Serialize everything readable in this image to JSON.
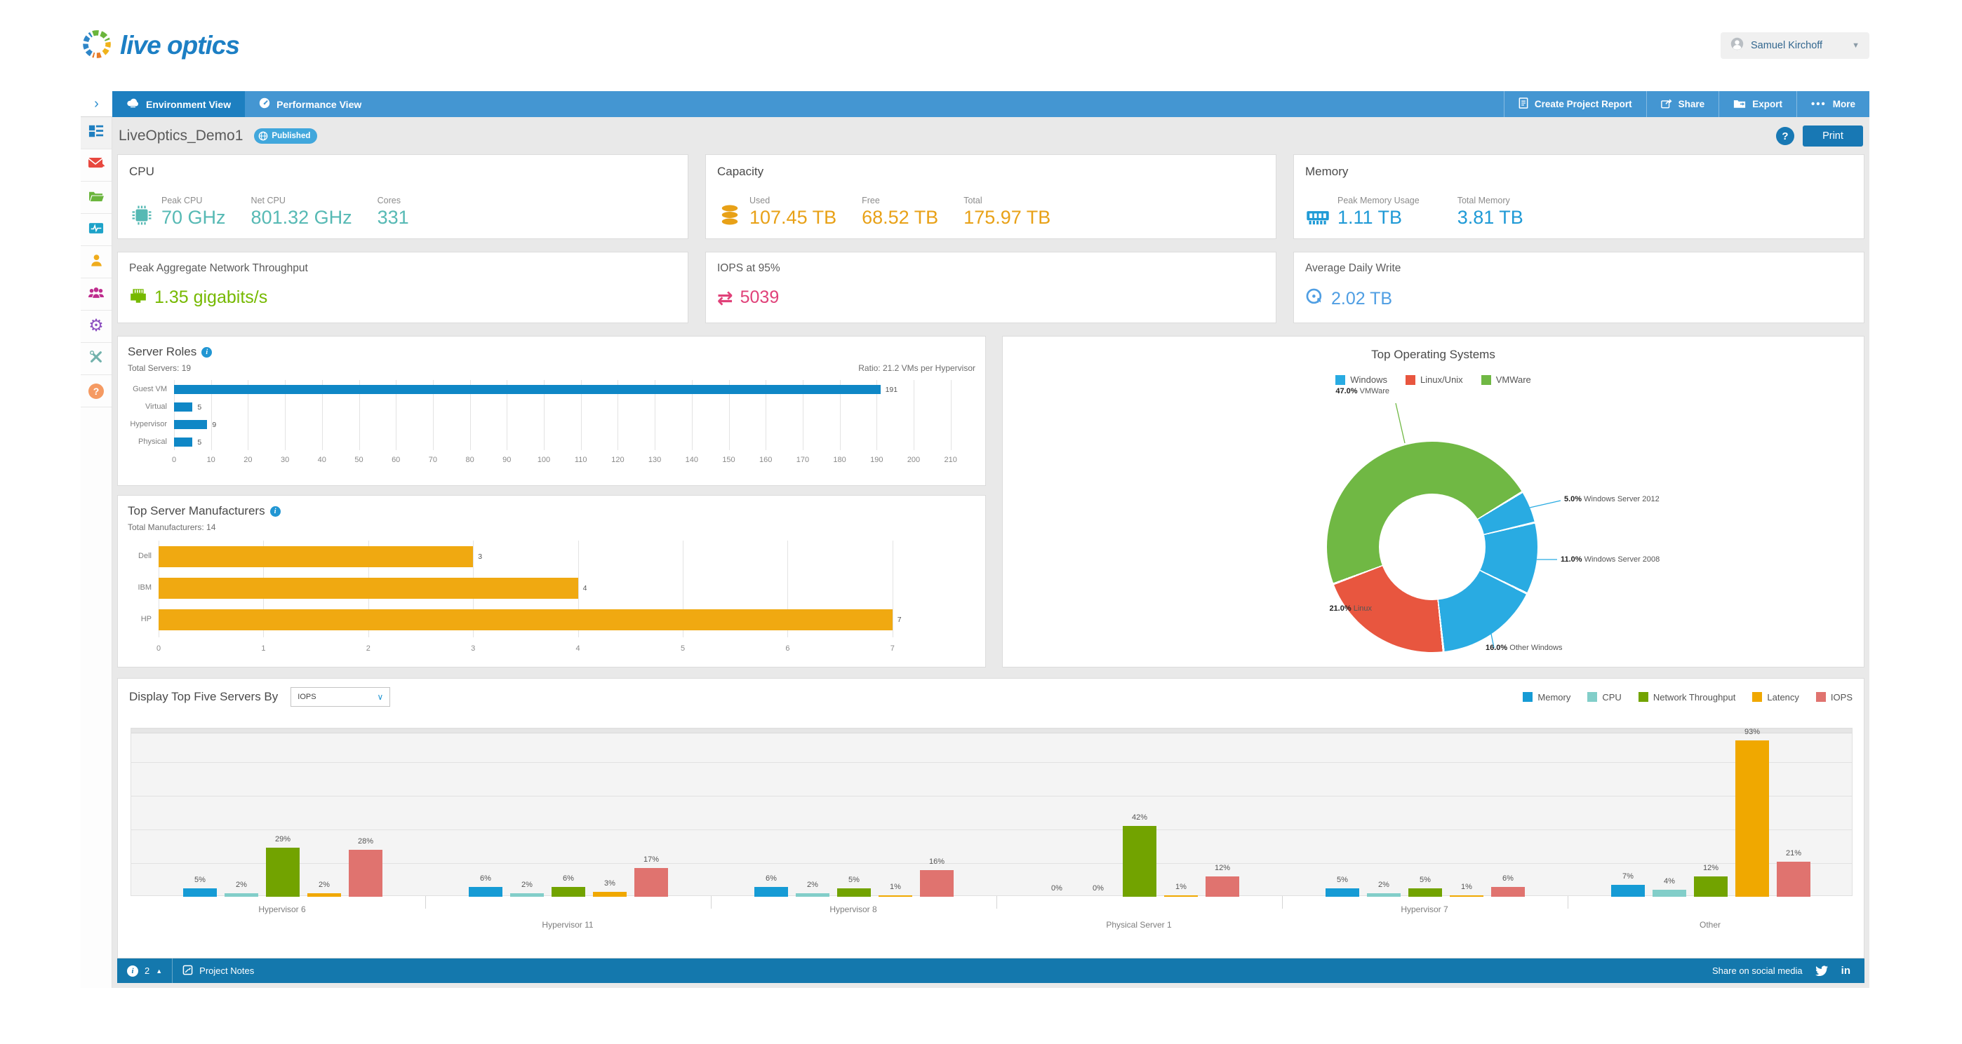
{
  "header": {
    "logo_text": "live optics",
    "user_name": "Samuel Kirchoff"
  },
  "navbar": {
    "collapse_icon": "›",
    "tabs": [
      {
        "label": "Environment View"
      },
      {
        "label": "Performance View"
      }
    ],
    "actions": [
      {
        "label": "Create Project Report"
      },
      {
        "label": "Share"
      },
      {
        "label": "Export"
      },
      {
        "label": "More"
      }
    ]
  },
  "titlebar": {
    "project_name": "LiveOptics_Demo1",
    "badge": "Published",
    "help_label": "?",
    "print_label": "Print"
  },
  "sidebar": {
    "items": [
      {
        "name": "dashboard-icon",
        "color": "#1f7fc0"
      },
      {
        "name": "mail-icon",
        "color": "#e8483f"
      },
      {
        "name": "folder-icon",
        "color": "#6ab53c"
      },
      {
        "name": "activity-monitor-icon",
        "color": "#1ea3c9"
      },
      {
        "name": "user-icon",
        "color": "#efac1c"
      },
      {
        "name": "team-icon",
        "color": "#bf2d8e"
      },
      {
        "name": "gear-icon",
        "color": "#8c4fc0"
      },
      {
        "name": "tools-icon",
        "color": "#72b2ac"
      },
      {
        "name": "help-icon",
        "color": "#f59a62"
      }
    ]
  },
  "summary_cards": {
    "cpu": {
      "title": "CPU",
      "accent": "#56b9b4",
      "metrics": [
        {
          "label": "Peak CPU",
          "value": "70 GHz"
        },
        {
          "label": "Net CPU",
          "value": "801.32 GHz"
        },
        {
          "label": "Cores",
          "value": "331"
        }
      ]
    },
    "capacity": {
      "title": "Capacity",
      "accent": "#e8a117",
      "metrics": [
        {
          "label": "Used",
          "value": "107.45 TB"
        },
        {
          "label": "Free",
          "value": "68.52 TB"
        },
        {
          "label": "Total",
          "value": "175.97 TB"
        }
      ]
    },
    "memory": {
      "title": "Memory",
      "accent": "#1f9ad6",
      "metrics": [
        {
          "label": "Peak Memory Usage",
          "value": "1.11 TB"
        },
        {
          "label": "Total Memory",
          "value": "3.81 TB"
        }
      ]
    },
    "network": {
      "title": "Peak Aggregate Network Throughput",
      "accent": "#76b900",
      "value": "1.35 gigabits/s"
    },
    "iops": {
      "title": "IOPS at 95%",
      "accent": "#e04179",
      "value": "5039"
    },
    "daily_write": {
      "title": "Average Daily Write",
      "accent": "#4f9ee3",
      "value": "2.02 TB"
    }
  },
  "chart_data": {
    "server_roles": {
      "type": "bar",
      "orientation": "horizontal",
      "title": "Server Roles",
      "subtitle_left": "Total Servers: 19",
      "subtitle_right": "Ratio: 21.2 VMs per Hypervisor",
      "categories": [
        "Guest VM",
        "Virtual",
        "Hypervisor",
        "Physical"
      ],
      "values": [
        191,
        5,
        9,
        5
      ],
      "xlim": [
        0,
        210
      ],
      "tick_step": 10,
      "bar_color": "#0f87c6",
      "grid": true
    },
    "manufacturers": {
      "type": "bar",
      "orientation": "horizontal",
      "title": "Top Server Manufacturers",
      "subtitle_left": "Total Manufacturers: 14",
      "categories": [
        "Dell",
        "IBM",
        "HP"
      ],
      "values": [
        3,
        4,
        7
      ],
      "xlim": [
        0,
        7
      ],
      "tick_step": 1,
      "bar_color": "#f0a911",
      "grid": true
    },
    "top_os": {
      "type": "pie",
      "donut": true,
      "start_angle_deg": 250,
      "title": "Top Operating Systems",
      "legend": [
        {
          "label": "Windows",
          "color": "#29abe2"
        },
        {
          "label": "Linux/Unix",
          "color": "#e8563f"
        },
        {
          "label": "VMWare",
          "color": "#70b844"
        }
      ],
      "slices": [
        {
          "label": "VMWare",
          "pct": 47.0,
          "color": "#70b844"
        },
        {
          "label": "Windows Server 2012",
          "pct": 5.0,
          "color": "#29abe2"
        },
        {
          "label": "Windows Server 2008",
          "pct": 11.0,
          "color": "#29abe2"
        },
        {
          "label": "Other Windows",
          "pct": 16.0,
          "color": "#29abe2"
        },
        {
          "label": "Linux",
          "pct": 21.0,
          "color": "#e8563f"
        }
      ]
    },
    "top_servers": {
      "type": "bar",
      "orientation": "vertical",
      "grouped": true,
      "title": "Display Top Five Servers By",
      "selected_metric": "IOPS",
      "categories": [
        "Hypervisor 6",
        "Hypervisor 11",
        "Hypervisor 8",
        "Physical Server 1",
        "Hypervisor 7",
        "Other"
      ],
      "series": [
        {
          "name": "Memory",
          "color": "#169bd5",
          "values": [
            5,
            6,
            6,
            0,
            5,
            7
          ]
        },
        {
          "name": "CPU",
          "color": "#82cec9",
          "values": [
            2,
            2,
            2,
            0,
            2,
            4
          ]
        },
        {
          "name": "Network Throughput",
          "color": "#72a300",
          "values": [
            29,
            6,
            5,
            42,
            5,
            12
          ]
        },
        {
          "name": "Latency",
          "color": "#f0a800",
          "values": [
            2,
            3,
            1,
            1,
            1,
            93
          ]
        },
        {
          "name": "IOPS",
          "color": "#e0736f",
          "values": [
            28,
            17,
            16,
            12,
            6,
            21
          ]
        }
      ],
      "unit": "%",
      "ylim": [
        0,
        100
      ],
      "grid_step": 20,
      "grid": true,
      "legend_position": "top-right"
    }
  },
  "footer": {
    "info_count": "2",
    "notes_label": "Project Notes",
    "share_label": "Share on social media"
  }
}
